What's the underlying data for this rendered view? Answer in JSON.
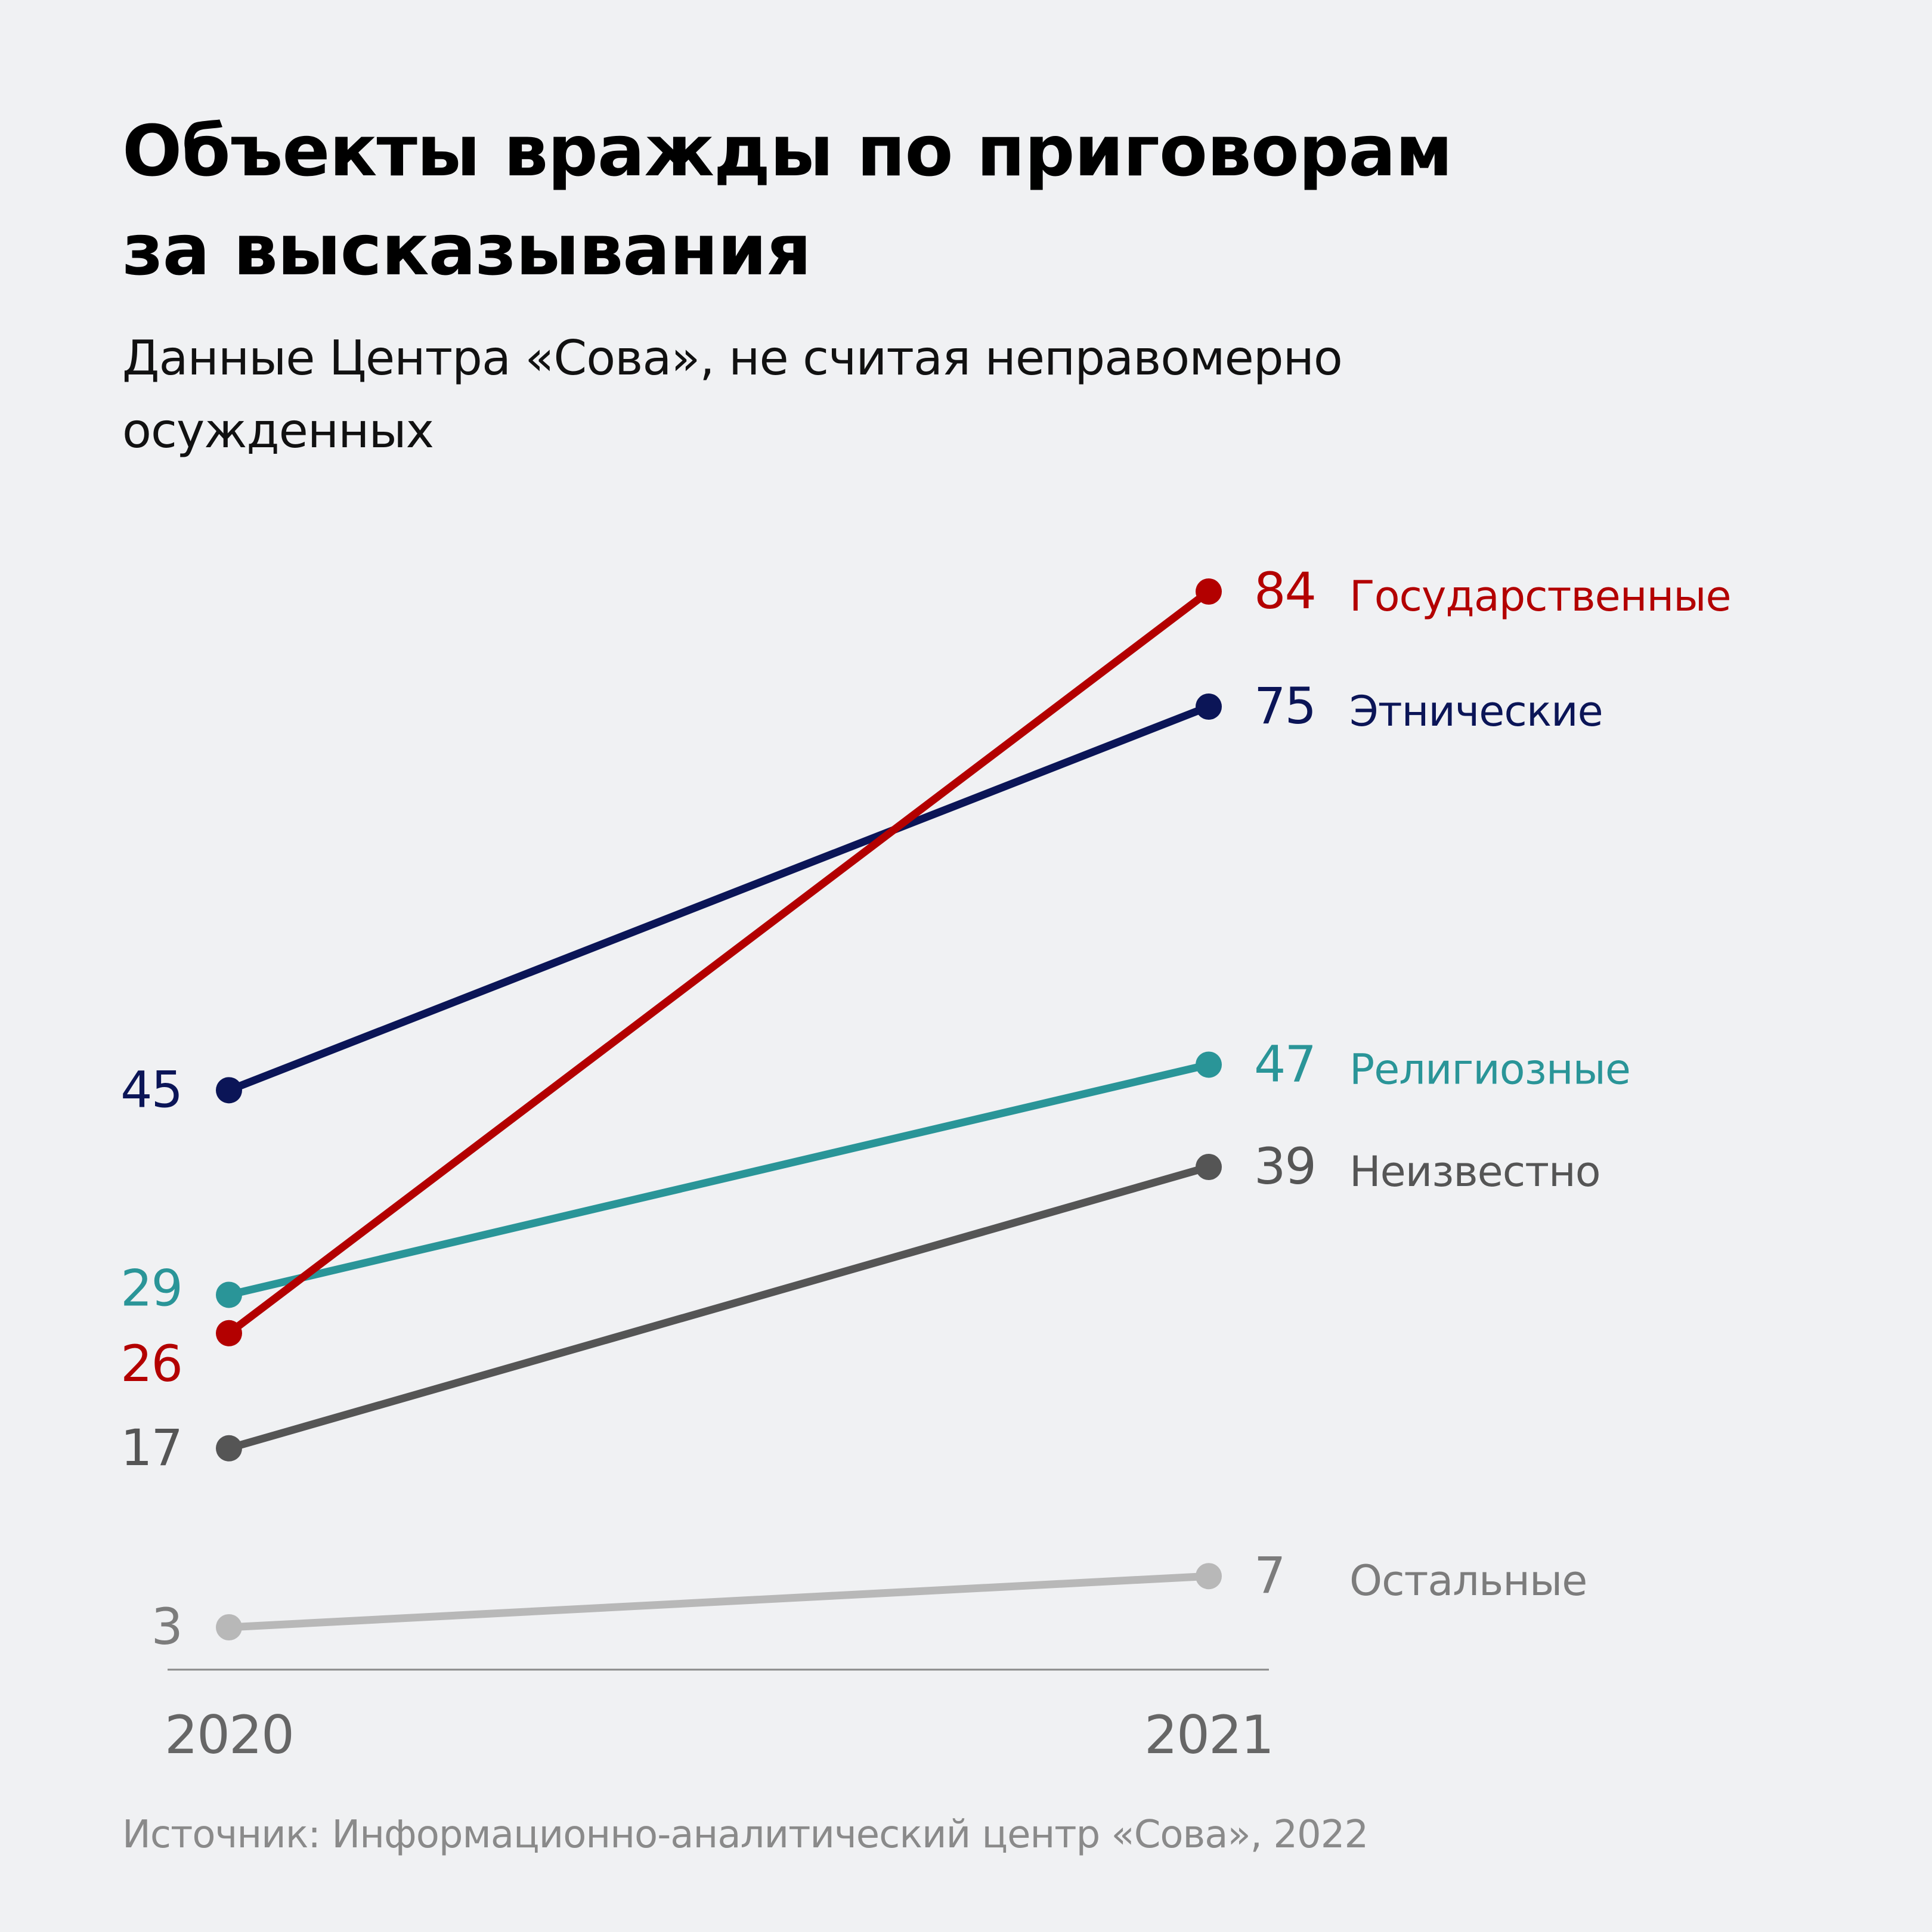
{
  "title_lines": [
    "Объекты вражды по приговорам",
    "за высказывания"
  ],
  "subtitle_lines": [
    "Данные Центра «Сова», не считая неправомерно",
    "осужденных"
  ],
  "source": "Источник: Информационно-аналитический центр «Сова», 2022",
  "chart_data": {
    "type": "line",
    "subtype": "slope",
    "title": "Объекты вражды по приговорам за высказывания",
    "subtitle": "Данные Центра «Сова», не считая неправомерно осужденных",
    "x": [
      "2020",
      "2021"
    ],
    "xlabel": "",
    "ylabel": "",
    "ylim": [
      3,
      84
    ],
    "grid": false,
    "legend": "direct labels at right end of each line",
    "series": [
      {
        "name": "Государственные",
        "values": [
          26,
          84
        ],
        "color": "#b30000"
      },
      {
        "name": "Этнические",
        "values": [
          45,
          75
        ],
        "color": "#0b1557"
      },
      {
        "name": "Религиозные",
        "values": [
          29,
          47
        ],
        "color": "#2a9598"
      },
      {
        "name": "Неизвестно",
        "values": [
          17,
          39
        ],
        "color": "#555555"
      },
      {
        "name": "Остальные",
        "values": [
          3,
          7
        ],
        "color": "#b8b8b8",
        "label_color": "#7c7c7c"
      }
    ],
    "source": "Источник: Информационно-аналитический центр «Сова», 2022"
  }
}
